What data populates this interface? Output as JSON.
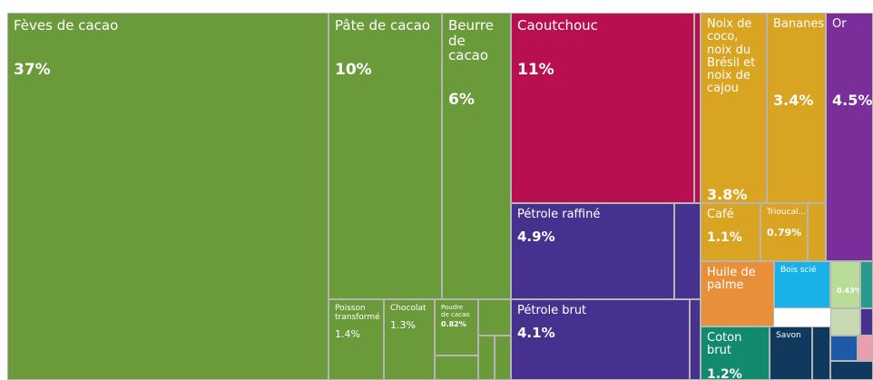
{
  "chart_data": {
    "type": "treemap",
    "categories": [
      "Fèves de cacao",
      "Pâte de cacao",
      "Beurre de cacao",
      "Poisson transformé",
      "Chocolat",
      "Poudre de cacao",
      "Caoutchouc",
      "Pétrole raffiné",
      "Pétrole brut",
      "Noix de coco, noix du Brésil et noix de cajou",
      "Bananes",
      "Or",
      "Café",
      "Trioucal...",
      "Huile de palme",
      "Bois scié",
      null,
      "Coton brut",
      "Savon"
    ],
    "values": [
      37,
      10,
      6,
      1.4,
      1.3,
      0.82,
      11,
      4.9,
      4.1,
      3.8,
      3.4,
      4.5,
      1.1,
      0.79,
      1.5,
      0.83,
      0.43,
      1.2,
      0.72
    ],
    "value_labels": [
      "37%",
      "10%",
      "6%",
      "1.4%",
      "1.3%",
      "0.82%",
      "11%",
      "4.9%",
      "4.1%",
      "3.8%",
      "3.4%",
      "4.5%",
      "1.1%",
      "0.79%",
      null,
      null,
      "0.43%",
      "1.2%",
      null
    ],
    "colors": [
      "#6b9a3b",
      "#6b9a3b",
      "#6b9a3b",
      "#6b9a3b",
      "#6b9a3b",
      "#6b9a3b",
      "#b80f50",
      "#46318f",
      "#46318f",
      "#d8a421",
      "#d8a421",
      "#7a2e9a",
      "#d8a421",
      "#d8a421",
      "#e88f3a",
      "#19b2e8",
      "#b9dc98",
      "#128a6e",
      "#0f3a5e"
    ]
  }
}
